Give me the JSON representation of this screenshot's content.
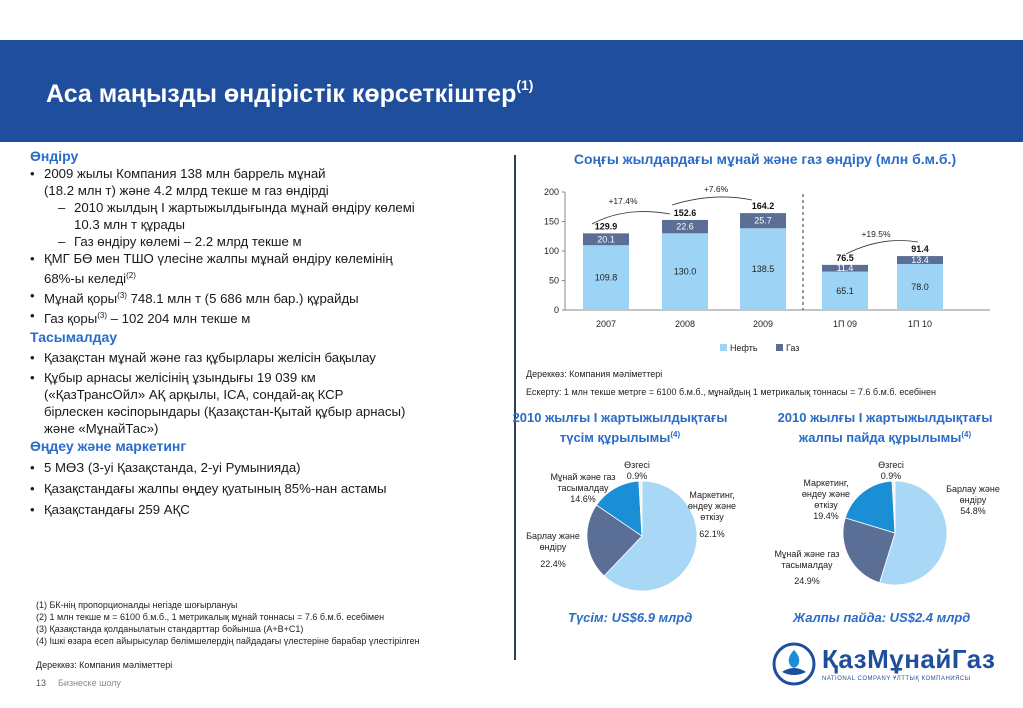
{
  "header": {
    "title": "Аса маңызды өндірістік көрсеткіштер",
    "title_sup": "(1)"
  },
  "left": {
    "s1": {
      "heading": "Өндіру",
      "b1_line1": "2009 жылы Компания 138 млн баррель мұнай",
      "b1_line2": "(18.2 млн т) және 4.2 млрд текше м газ өндірді",
      "sub1_line1": "2010 жылдың І жартыжылдығында мұнай өндіру көлемі",
      "sub1_line2": "10.3 млн т құрады",
      "sub2": "Газ өндіру көлемі – 2.2 млрд текше м",
      "b2_line1": "ҚМГ БӨ мен ТШО үлесіне жалпы мұнай өндіру көлемінің",
      "b2_line2": "68%-ы келеді",
      "b2_sup": "(2)",
      "b3_pre": "Мұнай қоры",
      "b3_sup": "(3)",
      "b3_post": " 748.1 млн т (5 686 млн бар.) құрайды",
      "b4_pre": "Газ қоры",
      "b4_sup": "(3)",
      "b4_post": " – 102 204 млн текше м"
    },
    "s2": {
      "heading": "Тасымалдау",
      "b1": "Қазақстан мұнай және газ құбырлары желісін бақылау",
      "b2_line1": "Құбыр арнасы желісінің ұзындығы 19 039 км",
      "b2_line2": "(«ҚазТрансОйл» АҚ арқылы, ICA, сондай-ақ КСР",
      "b2_line3": "бірлескен кәсіпорындары (Қазақстан-Қытай құбыр арнасы)",
      "b2_line4": "және «МұнайТас»)"
    },
    "s3": {
      "heading": "Өңдеу және маркетинг",
      "b1": "5 МӨЗ (3-уі Қазақстанда, 2-уі Румынияда)",
      "b2": "Қазақстандағы жалпы өңдеу қуатының 85%-нан астамы",
      "b3": "Қазақстандағы 259 АҚС"
    },
    "footnotes": [
      "(1) БК-нің пропорционалды негізде шоғырлануы",
      "(2) 1 млн текше м = 6100 б.м.б., 1 метрикалық мұнай тоннасы = 7.6 б.м.б. есебімен",
      "(3) Қазақстанда қолданылатын стандарттар бойынша (А+В+С1)",
      "(4) Ішкі өзара есеп айырысулар бөлімшелердің пайдадағы үлестеріне барабар үлестірілген"
    ],
    "source": "Дереккөз: Компания мәліметтері"
  },
  "footer": {
    "page": "13",
    "section": "Бизнеске шолу"
  },
  "chart_title": "Соңғы жылдардағы мұнай және газ өндіру (млн б.м.б.)",
  "chart_data": [
    {
      "type": "bar",
      "stacked": true,
      "title": "Соңғы жылдардағы мұнай және газ өндіру (млн б.м.б.)",
      "categories": [
        "2007",
        "2008",
        "2009",
        "1П 09",
        "1П 10"
      ],
      "series": [
        {
          "name": "Нефть",
          "values": [
            109.8,
            130.0,
            138.5,
            65.1,
            78.0
          ],
          "color": "#9dd3f5"
        },
        {
          "name": "Газ",
          "values": [
            20.1,
            22.6,
            25.7,
            11.4,
            13.4
          ],
          "color": "#5a6e96"
        }
      ],
      "totals": [
        129.9,
        152.6,
        164.2,
        76.5,
        91.4
      ],
      "ylim": [
        0,
        200
      ],
      "yticks": [
        0,
        50,
        100,
        150,
        200
      ],
      "annotations": [
        "+17.4%",
        "+7.6%",
        "+19.5%"
      ],
      "legend": "bottom",
      "grid": false
    },
    {
      "type": "pie",
      "title": "2010 жылғы І жартыжылдықтағы түсім құрылымы",
      "labels": [
        "Маркетинг, өндеу және өткізу",
        "Барлау және өндіру",
        "Мұнай және газ тасымалдау",
        "Өзгесі"
      ],
      "values": [
        62.1,
        22.4,
        14.6,
        0.9
      ],
      "colors": [
        "#a8d8f5",
        "#5a6e96",
        "#1b8fd6",
        "#f2f2f2"
      ]
    },
    {
      "type": "pie",
      "title": "2010 жылғы І жартыжылдықтағы жалпы пайда құрылымы",
      "labels": [
        "Барлау және өндіру",
        "Мұнай және газ тасымалдау",
        "Маркетинг, өндеу және өткізу",
        "Өзгесі"
      ],
      "values": [
        54.8,
        24.9,
        19.4,
        0.9
      ],
      "colors": [
        "#a8d8f5",
        "#5a6e96",
        "#1b8fd6",
        "#f2f2f2"
      ]
    }
  ],
  "chart_source": "Дереккөз: Компания мәліметтері",
  "chart_note": "Ескерту: 1 млн текше метрге = 6100 б.м.б., мұнайдың 1 метрикалық тоннасы = 7.6 б.м.б. есебінен",
  "pie1": {
    "title_line1": "2010 жылғы І жартыжылдықтағы",
    "title_line2": "түсім құрылымы",
    "title_sup": "(4)",
    "lbl_other": "Өзгесі",
    "lbl_other_pct": "0.9%",
    "lbl_transport": "Мұнай және газ тасымалдау",
    "lbl_transport_pct": "14.6%",
    "lbl_marketing": "Маркетинг, өндеу және өткізу",
    "lbl_marketing_pct": "62.1%",
    "lbl_exploration": "Барлау және өндіру",
    "lbl_exploration_pct": "22.4%",
    "caption": "Түсім: US$6.9 млрд"
  },
  "pie2": {
    "title_line1": "2010 жылғы І жартыжылдықтағы",
    "title_line2": "жалпы пайда құрылымы",
    "title_sup": "(4)",
    "lbl_other": "Өзгесі",
    "lbl_other_pct": "0.9%",
    "lbl_marketing": "Маркетинг, өндеу және өткізу",
    "lbl_marketing_pct": "19.4%",
    "lbl_exploration": "Барлау және өндіру",
    "lbl_exploration_pct": "54.8%",
    "lbl_transport": "Мұнай және газ тасымалдау",
    "lbl_transport_pct": "24.9%",
    "caption": "Жалпы пайда: US$2.4 млрд"
  },
  "logo": {
    "name": "ҚазМұнайГаз",
    "sub": "NATIONAL COMPANY ҰЛТТЫҚ КОМПАНИЯСЫ",
    "icon": "kmg-flame-logo-icon"
  }
}
